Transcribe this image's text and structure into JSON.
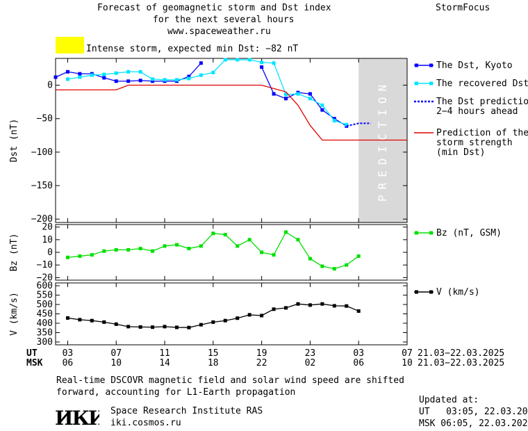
{
  "header": {
    "title_line1": "Forecast of geomagnetic storm and Dst index",
    "title_line2": "for the next several hours",
    "website": "www.spaceweather.ru",
    "app_name": "StormFocus",
    "storm_level_color": "#ffff00",
    "storm_text": "Intense storm, expected min Dst: −82 nT"
  },
  "footer": {
    "note_line1": "Real-time DSCOVR magnetic field and solar wind speed are shifted",
    "note_line2": "forward, accounting for L1-Earth propagation",
    "institute": "Space Research Institute RAS",
    "institute_site": "iki.cosmos.ru",
    "logo_text": "ИКИ",
    "updated_label": "Updated at:",
    "updated_ut": "UT   03:05, 22.03.2025",
    "updated_msk": "MSK 06:05, 22.03.2025"
  },
  "chart_data": {
    "type": "line",
    "time_axis": {
      "ut_label": "UT",
      "msk_label": "MSK",
      "date_range": "21.03−22.03.2025",
      "hours_span": [
        2,
        31
      ],
      "ticks": [
        {
          "t": 3,
          "ut": "03",
          "msk": "06"
        },
        {
          "t": 7,
          "ut": "07",
          "msk": "10"
        },
        {
          "t": 11,
          "ut": "11",
          "msk": "14"
        },
        {
          "t": 15,
          "ut": "15",
          "msk": "18"
        },
        {
          "t": 19,
          "ut": "19",
          "msk": "22"
        },
        {
          "t": 23,
          "ut": "23",
          "msk": "02"
        },
        {
          "t": 27,
          "ut": "03",
          "msk": "06"
        },
        {
          "t": 31,
          "ut": "07",
          "msk": "10"
        }
      ]
    },
    "panels": [
      {
        "id": "dst",
        "ylabel": "Dst (nT)",
        "ylim": [
          -205,
          40
        ],
        "yticks": [
          0,
          -50,
          -100,
          -150,
          -200
        ],
        "prediction_region": {
          "from": 27,
          "to": 31,
          "label": "PREDICTION"
        },
        "series": [
          {
            "name": "The Dst, Kyoto",
            "color": "#0000ff",
            "marker": "square",
            "segments": [
              [
                [
                  2,
                  12
                ],
                [
                  3,
                  20
                ],
                [
                  4,
                  17
                ],
                [
                  5,
                  17
                ],
                [
                  6,
                  11
                ],
                [
                  7,
                  6
                ],
                [
                  8,
                  6
                ],
                [
                  9,
                  7
                ],
                [
                  10,
                  6
                ],
                [
                  11,
                  6
                ],
                [
                  12,
                  6
                ],
                [
                  13,
                  13
                ],
                [
                  14,
                  33
                ]
              ],
              [
                [
                  19,
                  27
                ],
                [
                  20,
                  -13
                ],
                [
                  21,
                  -20
                ],
                [
                  22,
                  -11
                ],
                [
                  23,
                  -13
                ],
                [
                  24,
                  -37
                ],
                [
                  25,
                  -50
                ],
                [
                  26,
                  -61
                ]
              ]
            ]
          },
          {
            "name": "The recovered Dst",
            "color": "#00e5ff",
            "marker": "square",
            "segments": [
              [
                [
                  3,
                  9
                ],
                [
                  4,
                  12
                ],
                [
                  5,
                  15
                ],
                [
                  6,
                  16
                ],
                [
                  7,
                  18
                ],
                [
                  8,
                  20
                ],
                [
                  9,
                  20
                ],
                [
                  10,
                  9
                ],
                [
                  11,
                  8
                ],
                [
                  12,
                  8
                ],
                [
                  13,
                  10
                ],
                [
                  14,
                  15
                ],
                [
                  15,
                  19
                ],
                [
                  16,
                  38
                ],
                [
                  17,
                  38
                ],
                [
                  18,
                  38
                ],
                [
                  19,
                  34
                ],
                [
                  20,
                  33
                ],
                [
                  21,
                  -14
                ],
                [
                  22,
                  -13
                ],
                [
                  23,
                  -20
                ],
                [
                  24,
                  -30
                ],
                [
                  25,
                  -53
                ],
                [
                  26,
                  -59
                ]
              ]
            ]
          },
          {
            "name": "The Dst prediction",
            "name_line2": "2−4 hours ahead",
            "color": "#0000ff",
            "dashed": true,
            "segments": [
              [
                [
                  26,
                  -61
                ],
                [
                  27,
                  -57
                ],
                [
                  28,
                  -57
                ]
              ]
            ]
          },
          {
            "name": "Prediction of the",
            "name_line2": "storm strength",
            "name_line3": "(min Dst)",
            "color": "#e00000",
            "segments": [
              [
                [
                  2,
                  -7
                ],
                [
                  7,
                  -7
                ],
                [
                  8,
                  0
                ],
                [
                  19,
                  0
                ],
                [
                  21,
                  -10
                ],
                [
                  22,
                  -30
                ],
                [
                  23,
                  -60
                ],
                [
                  24,
                  -82
                ],
                [
                  31,
                  -82
                ]
              ]
            ]
          }
        ]
      },
      {
        "id": "bz",
        "ylabel": "Bz (nT)",
        "ylim": [
          -22,
          22
        ],
        "yticks": [
          20,
          10,
          0,
          -10,
          -20
        ],
        "series": [
          {
            "name": "Bz (nT, GSM)",
            "color": "#00e000",
            "marker": "square",
            "segments": [
              [
                [
                  3,
                  -4
                ],
                [
                  4,
                  -3
                ],
                [
                  5,
                  -2
                ],
                [
                  6,
                  1
                ],
                [
                  7,
                  2
                ],
                [
                  8,
                  2
                ],
                [
                  9,
                  3
                ],
                [
                  10,
                  1
                ],
                [
                  11,
                  5
                ],
                [
                  12,
                  6
                ],
                [
                  13,
                  3
                ],
                [
                  14,
                  5
                ],
                [
                  15,
                  15
                ],
                [
                  16,
                  14
                ],
                [
                  17,
                  5
                ],
                [
                  18,
                  10
                ],
                [
                  19,
                  0
                ],
                [
                  20,
                  -2
                ],
                [
                  21,
                  16
                ],
                [
                  22,
                  10
                ],
                [
                  23,
                  -5
                ],
                [
                  24,
                  -11
                ],
                [
                  25,
                  -13
                ],
                [
                  26,
                  -10
                ],
                [
                  27,
                  -3
                ]
              ]
            ]
          }
        ]
      },
      {
        "id": "v",
        "ylabel": "V (km/s)",
        "ylim": [
          285,
          615
        ],
        "yticks": [
          600,
          550,
          500,
          450,
          400,
          350,
          300
        ],
        "series": [
          {
            "name": "V (km/s)",
            "color": "#000000",
            "marker": "square",
            "segments": [
              [
                [
                  3,
                  428
                ],
                [
                  4,
                  419
                ],
                [
                  5,
                  414
                ],
                [
                  6,
                  406
                ],
                [
                  7,
                  395
                ],
                [
                  8,
                  382
                ],
                [
                  9,
                  380
                ],
                [
                  10,
                  379
                ],
                [
                  11,
                  382
                ],
                [
                  12,
                  378
                ],
                [
                  13,
                  377
                ],
                [
                  14,
                  392
                ],
                [
                  15,
                  406
                ],
                [
                  16,
                  414
                ],
                [
                  17,
                  427
                ],
                [
                  18,
                  445
                ],
                [
                  19,
                  441
                ],
                [
                  20,
                  475
                ],
                [
                  21,
                  482
                ],
                [
                  22,
                  503
                ],
                [
                  23,
                  497
                ],
                [
                  24,
                  503
                ],
                [
                  25,
                  493
                ],
                [
                  26,
                  492
                ],
                [
                  27,
                  465
                ]
              ]
            ]
          }
        ]
      }
    ]
  }
}
